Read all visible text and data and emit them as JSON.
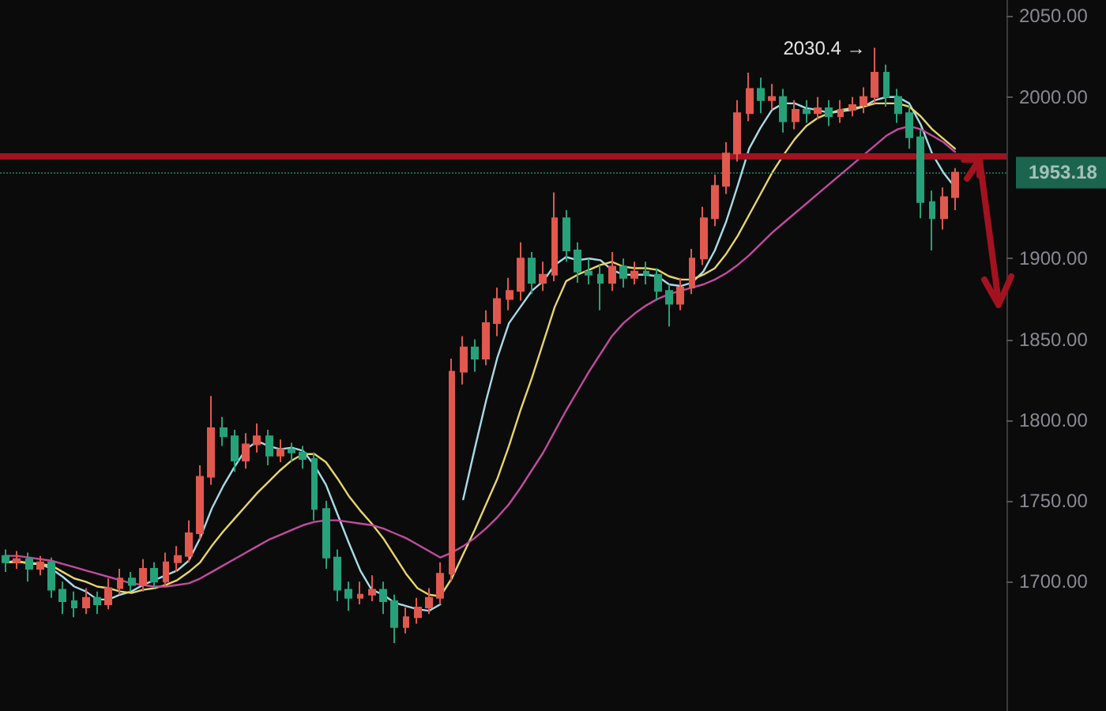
{
  "chart_data": {
    "type": "candlestick",
    "categories": [
      null,
      null,
      null,
      null,
      null,
      null,
      null,
      null,
      null,
      null,
      null,
      null,
      null,
      null,
      null,
      null,
      null,
      null,
      null,
      null,
      null,
      null,
      null,
      null,
      null,
      null,
      null,
      null,
      null,
      null,
      null,
      null,
      null,
      null,
      null,
      null,
      null,
      null,
      null,
      null,
      null,
      null,
      null,
      null,
      null,
      null,
      null,
      null,
      null,
      null,
      null,
      null,
      null,
      null,
      null,
      null,
      null,
      null,
      null,
      null,
      null,
      null,
      null,
      null,
      null,
      null,
      null,
      null,
      null,
      null,
      null,
      null,
      null,
      null,
      null,
      null,
      null,
      null,
      null,
      null,
      null,
      null,
      null,
      null
    ],
    "ohlc": [
      [
        1716,
        1720,
        1706,
        1712
      ],
      [
        1712,
        1719,
        1708,
        1714
      ],
      [
        1714,
        1718,
        1700,
        1708
      ],
      [
        1708,
        1716,
        1704,
        1712
      ],
      [
        1712,
        1715,
        1690,
        1695
      ],
      [
        1695,
        1700,
        1680,
        1688
      ],
      [
        1688,
        1694,
        1678,
        1684
      ],
      [
        1684,
        1696,
        1680,
        1690
      ],
      [
        1690,
        1694,
        1680,
        1686
      ],
      [
        1686,
        1702,
        1683,
        1696
      ],
      [
        1696,
        1708,
        1692,
        1702
      ],
      [
        1702,
        1706,
        1694,
        1698
      ],
      [
        1698,
        1714,
        1694,
        1708
      ],
      [
        1708,
        1712,
        1696,
        1700
      ],
      [
        1700,
        1718,
        1697,
        1712
      ],
      [
        1712,
        1722,
        1706,
        1716
      ],
      [
        1716,
        1738,
        1712,
        1730
      ],
      [
        1730,
        1772,
        1726,
        1765
      ],
      [
        1765,
        1815,
        1760,
        1795
      ],
      [
        1795,
        1802,
        1784,
        1790
      ],
      [
        1790,
        1794,
        1768,
        1775
      ],
      [
        1775,
        1792,
        1770,
        1785
      ],
      [
        1785,
        1798,
        1780,
        1790
      ],
      [
        1790,
        1794,
        1772,
        1778
      ],
      [
        1778,
        1788,
        1774,
        1782
      ],
      [
        1782,
        1786,
        1774,
        1780
      ],
      [
        1780,
        1784,
        1770,
        1776
      ],
      [
        1776,
        1780,
        1738,
        1745
      ],
      [
        1745,
        1750,
        1708,
        1715
      ],
      [
        1715,
        1720,
        1688,
        1695
      ],
      [
        1695,
        1700,
        1682,
        1690
      ],
      [
        1690,
        1700,
        1686,
        1692
      ],
      [
        1692,
        1704,
        1688,
        1695
      ],
      [
        1695,
        1700,
        1680,
        1688
      ],
      [
        1688,
        1692,
        1662,
        1672
      ],
      [
        1672,
        1684,
        1668,
        1678
      ],
      [
        1678,
        1690,
        1674,
        1684
      ],
      [
        1684,
        1696,
        1680,
        1690
      ],
      [
        1690,
        1712,
        1686,
        1705
      ],
      [
        1705,
        1838,
        1700,
        1830
      ],
      [
        1830,
        1852,
        1822,
        1845
      ],
      [
        1845,
        1850,
        1830,
        1838
      ],
      [
        1838,
        1868,
        1834,
        1860
      ],
      [
        1860,
        1882,
        1852,
        1875
      ],
      [
        1875,
        1888,
        1868,
        1880
      ],
      [
        1880,
        1910,
        1874,
        1900
      ],
      [
        1900,
        1904,
        1878,
        1885
      ],
      [
        1885,
        1898,
        1880,
        1890
      ],
      [
        1890,
        1941,
        1886,
        1925
      ],
      [
        1925,
        1930,
        1898,
        1905
      ],
      [
        1905,
        1910,
        1885,
        1892
      ],
      [
        1892,
        1900,
        1884,
        1890
      ],
      [
        1890,
        1896,
        1868,
        1885
      ],
      [
        1885,
        1904,
        1880,
        1895
      ],
      [
        1895,
        1900,
        1882,
        1888
      ],
      [
        1888,
        1898,
        1884,
        1892
      ],
      [
        1892,
        1898,
        1884,
        1890
      ],
      [
        1890,
        1894,
        1874,
        1880
      ],
      [
        1880,
        1884,
        1858,
        1872
      ],
      [
        1872,
        1888,
        1868,
        1882
      ],
      [
        1882,
        1906,
        1878,
        1900
      ],
      [
        1900,
        1932,
        1896,
        1925
      ],
      [
        1925,
        1952,
        1920,
        1945
      ],
      [
        1945,
        1972,
        1940,
        1965
      ],
      [
        1965,
        1998,
        1960,
        1990
      ],
      [
        1990,
        2015,
        1985,
        2005
      ],
      [
        2005,
        2012,
        1990,
        1998
      ],
      [
        1998,
        2008,
        1992,
        2000
      ],
      [
        2000,
        2005,
        1978,
        1985
      ],
      [
        1985,
        1998,
        1980,
        1992
      ],
      [
        1992,
        1998,
        1984,
        1990
      ],
      [
        1990,
        2000,
        1986,
        1993
      ],
      [
        1993,
        1998,
        1982,
        1988
      ],
      [
        1988,
        1998,
        1984,
        1992
      ],
      [
        1992,
        2000,
        1988,
        1995
      ],
      [
        1995,
        2006,
        1990,
        2000
      ],
      [
        2000,
        2030.4,
        1996,
        2015
      ],
      [
        2015,
        2020,
        1994,
        2000
      ],
      [
        2000,
        2005,
        1984,
        1990
      ],
      [
        1990,
        1995,
        1968,
        1975
      ],
      [
        1975,
        1980,
        1925,
        1935
      ],
      [
        1935,
        1942,
        1905,
        1925
      ],
      [
        1925,
        1944,
        1918,
        1938
      ],
      [
        1938,
        1956,
        1930,
        1953.18
      ]
    ],
    "series": [
      {
        "type": "line",
        "color": "#a8dce8",
        "values": [
          1712,
          1713,
          1711,
          1711,
          1708,
          1703,
          1697,
          1694,
          1689,
          1689,
          1692,
          1694,
          1698,
          1701,
          1704,
          1707,
          1713,
          1727,
          1745,
          1759,
          1771,
          1782,
          1787,
          1784,
          1782,
          1783,
          1781,
          1772,
          1760,
          1742,
          1724,
          1707,
          1695,
          1692,
          1687,
          1685,
          1683,
          1682,
          1686,
          null,
          1751,
          1782,
          1812,
          1839,
          1860,
          1870,
          1880,
          1886,
          1896,
          1901,
          1899,
          1900,
          1899,
          1893,
          1890,
          1890,
          1890,
          1889,
          1884,
          1883,
          1885,
          1892,
          1905,
          1923,
          1945,
          1968,
          1981,
          1992,
          1996,
          1996,
          1993,
          1992,
          1990,
          1991,
          1992,
          1994,
          1998,
          2000,
          2000,
          1996,
          1983,
          1965,
          1953,
          1944
        ]
      },
      {
        "type": "line",
        "color": "#e8d66a",
        "values": [
          1712,
          1712,
          1712,
          1711,
          1710,
          1706,
          1702,
          1700,
          1697,
          1696,
          1694,
          1693,
          1695,
          1696,
          1698,
          1701,
          1706,
          1712,
          1722,
          1731,
          1739,
          1747,
          1755,
          1762,
          1769,
          1775,
          1779,
          1779,
          1774,
          1764,
          1753,
          1744,
          1736,
          1727,
          1716,
          1705,
          1696,
          1692,
          1691,
          1702,
          1717,
          1732,
          1748,
          1764,
          1784,
          1806,
          1826,
          1848,
          1870,
          1886,
          1890,
          1893,
          1896,
          1898,
          1895,
          1894,
          1894,
          1893,
          1889,
          1887,
          1887,
          1890,
          1894,
          1903,
          1914,
          1927,
          1940,
          1953,
          1964,
          1974,
          1982,
          1987,
          1990,
          1992,
          1993,
          1994,
          1996,
          1996,
          1996,
          1994,
          1988,
          1980,
          1974,
          1968
        ]
      },
      {
        "type": "line",
        "color": "#c24c9e",
        "values": [
          1716,
          1716,
          1715,
          1714,
          1713,
          1711,
          1709,
          1707,
          1705,
          1703,
          1701,
          1699,
          1698,
          1697,
          1697,
          1698,
          1699,
          1702,
          1706,
          1710,
          1714,
          1718,
          1722,
          1726,
          1729,
          1732,
          1735,
          1737,
          1738,
          1738,
          1737,
          1736,
          1735,
          1733,
          1730,
          1727,
          1723,
          1719,
          1715,
          1718,
          1722,
          1727,
          1733,
          1740,
          1748,
          1758,
          1769,
          1780,
          1793,
          1806,
          1818,
          1830,
          1841,
          1852,
          1860,
          1866,
          1871,
          1875,
          1878,
          1880,
          1882,
          1884,
          1887,
          1891,
          1896,
          1902,
          1909,
          1916,
          1922,
          1928,
          1934,
          1940,
          1946,
          1952,
          1958,
          1964,
          1970,
          1976,
          1980,
          1982,
          1980,
          1976,
          1972,
          1966
        ]
      }
    ],
    "ylim": [
      1620,
      2060
    ],
    "yticks": [
      {
        "value": 1700,
        "label": "1700.00"
      },
      {
        "value": 1750,
        "label": "1750.00"
      },
      {
        "value": 1800,
        "label": "1800.00"
      },
      {
        "value": 1850,
        "label": "1850.00"
      },
      {
        "value": 1900,
        "label": "1900.00"
      },
      {
        "value": 2000,
        "label": "2000.00"
      },
      {
        "value": 2050,
        "label": "2050.00"
      }
    ],
    "ref_lines": [
      {
        "axis": "y",
        "value": 1963,
        "color": "#a3121f"
      },
      {
        "axis": "y",
        "value": 1953.18,
        "label": "1953.18",
        "color": "#26a17b",
        "line_style": "dotted"
      }
    ],
    "annotations": [
      "2030.4 →"
    ],
    "tick_labels": "y",
    "grid": false,
    "line_style": "solid"
  }
}
